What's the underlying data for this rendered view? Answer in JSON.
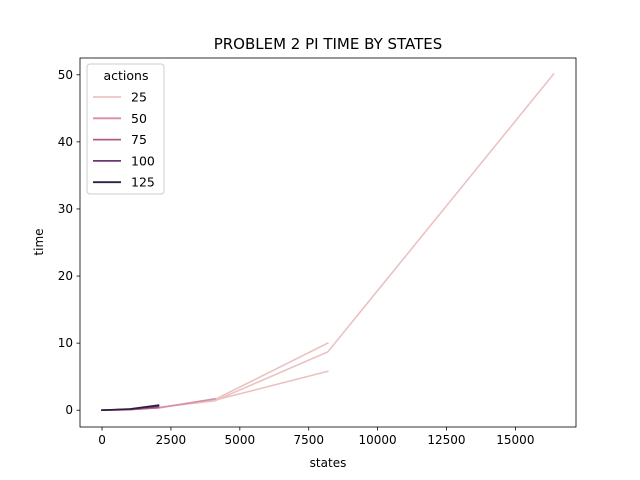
{
  "chart_data": {
    "type": "line",
    "title": "PROBLEM 2 PI TIME BY STATES",
    "xlabel": "states",
    "ylabel": "time",
    "xlim": [
      -800,
      17200
    ],
    "ylim": [
      -2.5,
      52.5
    ],
    "xticks": [
      0,
      2500,
      5000,
      7500,
      10000,
      12500,
      15000
    ],
    "yticks": [
      0,
      10,
      20,
      30,
      40,
      50
    ],
    "grid": false,
    "legend": {
      "title": "actions",
      "position": "top-left"
    },
    "series": [
      {
        "name": "25",
        "color": "#ebc2c2",
        "points": [
          {
            "x": 0,
            "y": 0.0
          },
          {
            "x": 1024,
            "y": 0.1
          },
          {
            "x": 2048,
            "y": 0.4
          },
          {
            "x": 4096,
            "y": 1.4
          },
          {
            "x": 8192,
            "y": 8.7
          },
          {
            "x": 16384,
            "y": 50.1
          }
        ]
      },
      {
        "name": "25",
        "color": "#ebc2c2",
        "points": [
          {
            "x": 2048,
            "y": 0.4
          },
          {
            "x": 4096,
            "y": 1.6
          },
          {
            "x": 8192,
            "y": 10.0
          }
        ]
      },
      {
        "name": "25",
        "color": "#ebc2c2",
        "points": [
          {
            "x": 4096,
            "y": 1.5
          },
          {
            "x": 8192,
            "y": 5.8
          }
        ]
      },
      {
        "name": "50",
        "color": "#d590a3",
        "points": [
          {
            "x": 0,
            "y": 0.0
          },
          {
            "x": 1024,
            "y": 0.1
          },
          {
            "x": 2048,
            "y": 0.35
          },
          {
            "x": 4096,
            "y": 1.7
          }
        ]
      },
      {
        "name": "75",
        "color": "#b05b88",
        "points": [
          {
            "x": 0,
            "y": 0.0
          },
          {
            "x": 1024,
            "y": 0.1
          },
          {
            "x": 2048,
            "y": 0.4
          }
        ]
      },
      {
        "name": "100",
        "color": "#6e3570",
        "points": [
          {
            "x": 0,
            "y": 0.0
          },
          {
            "x": 1024,
            "y": 0.15
          },
          {
            "x": 2048,
            "y": 0.6
          }
        ]
      },
      {
        "name": "125",
        "color": "#2d1e3e",
        "points": [
          {
            "x": 0,
            "y": 0.0
          },
          {
            "x": 1024,
            "y": 0.2
          },
          {
            "x": 2048,
            "y": 0.75
          }
        ]
      }
    ],
    "legend_entries": [
      {
        "label": "25",
        "color": "#ebc2c2"
      },
      {
        "label": "50",
        "color": "#d590a3"
      },
      {
        "label": "75",
        "color": "#b05b88"
      },
      {
        "label": "100",
        "color": "#6e3570"
      },
      {
        "label": "125",
        "color": "#2d1e3e"
      }
    ]
  }
}
